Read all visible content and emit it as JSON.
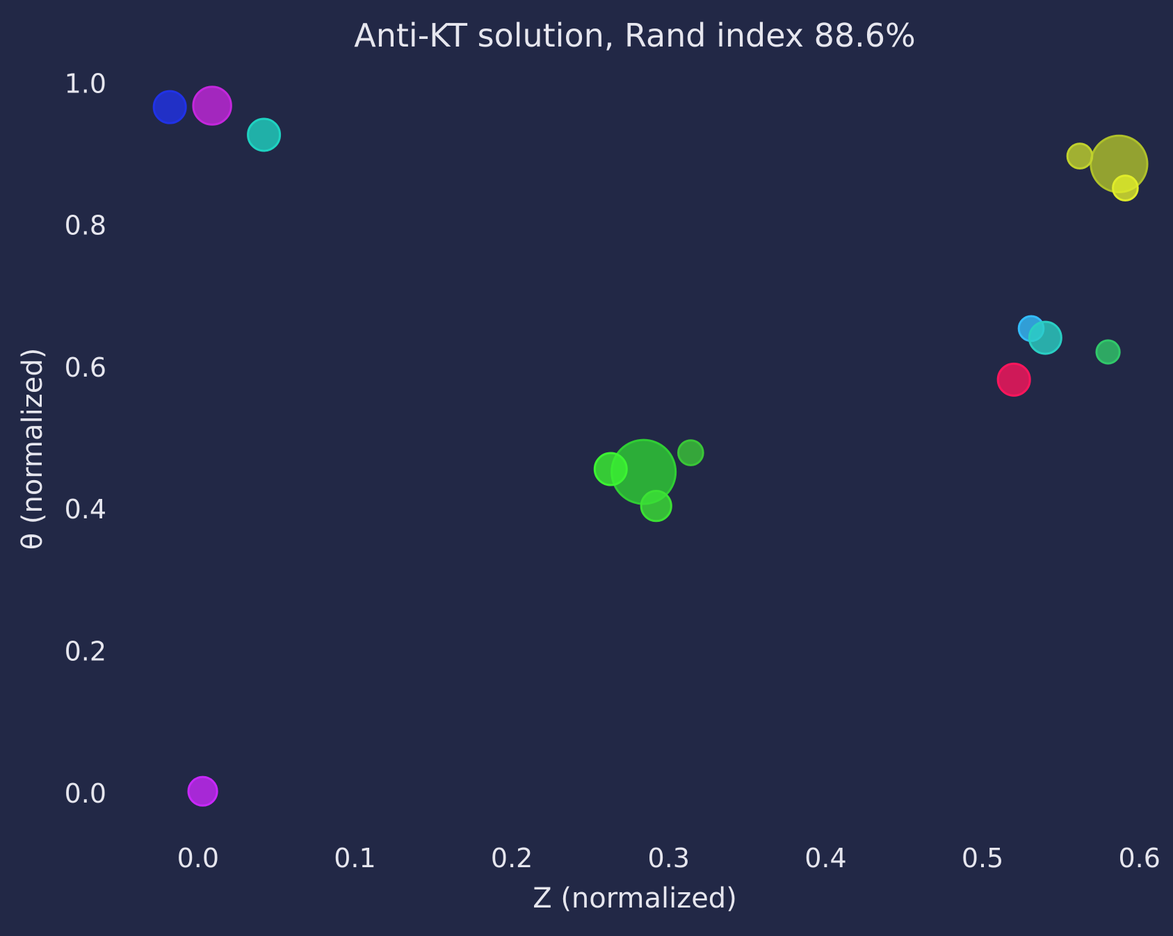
{
  "chart_data": {
    "type": "scatter",
    "title": "Anti-KT solution, Rand index 88.6%",
    "xlabel": "Z (normalized)",
    "ylabel": "θ (normalized)",
    "xlim": [
      -0.05,
      0.605
    ],
    "ylim": [
      -0.057,
      1.02
    ],
    "xticks": [
      0.0,
      0.1,
      0.2,
      0.3,
      0.4,
      0.5,
      0.6
    ],
    "yticks": [
      0.0,
      0.2,
      0.4,
      0.6,
      0.8,
      1.0
    ],
    "xtick_labels": [
      "0.0",
      "0.1",
      "0.2",
      "0.3",
      "0.4",
      "0.5",
      "0.6"
    ],
    "ytick_labels": [
      "0.0",
      "0.2",
      "0.4",
      "0.6",
      "0.8",
      "1.0"
    ],
    "grid": false,
    "background": "#222846",
    "points": [
      {
        "x": -0.018,
        "y": 0.967,
        "size": 0.25,
        "color": "#1a28b8"
      },
      {
        "x": 0.009,
        "y": 0.969,
        "size": 0.35,
        "color": "#9c1fb0"
      },
      {
        "x": 0.042,
        "y": 0.928,
        "size": 0.25,
        "color": "#19a89a"
      },
      {
        "x": 0.003,
        "y": 0.003,
        "size": 0.2,
        "color": "#a020c8"
      },
      {
        "x": 0.284,
        "y": 0.453,
        "size": 1.0,
        "color": "#26a52a"
      },
      {
        "x": 0.263,
        "y": 0.457,
        "size": 0.25,
        "color": "#30c228"
      },
      {
        "x": 0.292,
        "y": 0.405,
        "size": 0.22,
        "color": "#30b42a"
      },
      {
        "x": 0.314,
        "y": 0.48,
        "size": 0.15,
        "color": "#2e9e2c"
      },
      {
        "x": 0.587,
        "y": 0.887,
        "size": 0.78,
        "color": "#8c9a22"
      },
      {
        "x": 0.562,
        "y": 0.898,
        "size": 0.15,
        "color": "#9aa824"
      },
      {
        "x": 0.591,
        "y": 0.853,
        "size": 0.15,
        "color": "#b3bd22"
      },
      {
        "x": 0.531,
        "y": 0.655,
        "size": 0.15,
        "color": "#2a96c8"
      },
      {
        "x": 0.54,
        "y": 0.642,
        "size": 0.25,
        "color": "#22a59c"
      },
      {
        "x": 0.58,
        "y": 0.622,
        "size": 0.13,
        "color": "#27a055"
      },
      {
        "x": 0.52,
        "y": 0.583,
        "size": 0.25,
        "color": "#c8124a"
      }
    ]
  }
}
